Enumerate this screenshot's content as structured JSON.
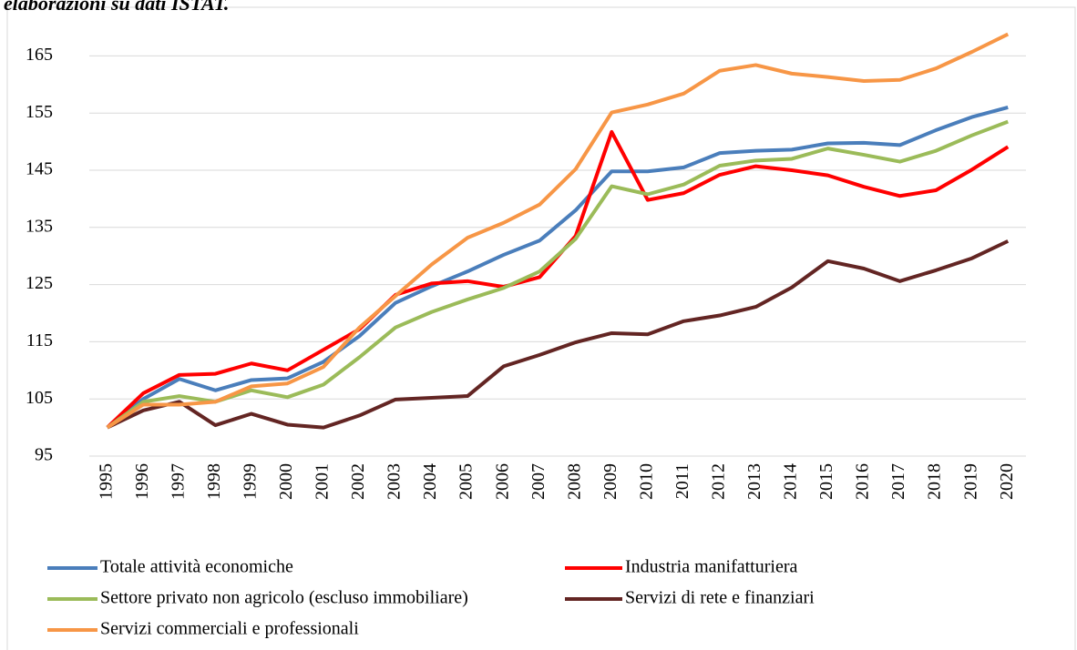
{
  "chart_data": {
    "type": "line",
    "subtitle": "elaborazioni su dati ISTAT.",
    "categories": [
      "1995",
      "1996",
      "1997",
      "1998",
      "1999",
      "2000",
      "2001",
      "2002",
      "2003",
      "2004",
      "2005",
      "2006",
      "2007",
      "2008",
      "2009",
      "2010",
      "2011",
      "2012",
      "2013",
      "2014",
      "2015",
      "2016",
      "2017",
      "2018",
      "2019",
      "2020"
    ],
    "series": [
      {
        "name": "Totale attività economiche",
        "color": "#4a7ebb",
        "values": [
          100,
          105,
          108.5,
          106.5,
          108.3,
          108.6,
          111.5,
          116,
          121.8,
          124.7,
          127.3,
          130.2,
          132.7,
          138,
          144.8,
          144.8,
          145.5,
          148,
          148.4,
          148.6,
          149.7,
          149.8,
          149.4,
          152,
          154.3,
          156
        ]
      },
      {
        "name": "Industria manifatturiera",
        "color": "#ff0000",
        "values": [
          100,
          106,
          109.2,
          109.4,
          111.2,
          110,
          113.6,
          117.2,
          123.2,
          125.2,
          125.6,
          124.6,
          126.3,
          133.5,
          151.7,
          139.8,
          141,
          144.2,
          145.7,
          145,
          144.1,
          142.1,
          140.5,
          141.5,
          145.1,
          149.1
        ]
      },
      {
        "name": "Settore privato non agricolo (escluso immobiliare)",
        "color": "#9bbb59",
        "values": [
          100,
          104.5,
          105.5,
          104.5,
          106.5,
          105.3,
          107.5,
          112.3,
          117.5,
          120.2,
          122.4,
          124.4,
          127.3,
          133,
          142.2,
          140.8,
          142.5,
          145.8,
          146.7,
          147,
          148.8,
          147.7,
          146.5,
          148.4,
          151.1,
          153.5
        ]
      },
      {
        "name": "Servizi di rete e finanziari",
        "color": "#632523",
        "values": [
          100,
          103,
          104.5,
          100.4,
          102.4,
          100.5,
          100,
          102.1,
          104.9,
          105.2,
          105.5,
          110.7,
          112.7,
          114.9,
          116.5,
          116.3,
          118.6,
          119.6,
          121.1,
          124.5,
          129.1,
          127.8,
          125.6,
          127.5,
          129.6,
          132.6
        ]
      },
      {
        "name": "Servizi commerciali e professionali",
        "color": "#f79646",
        "values": [
          100,
          104,
          104,
          104.5,
          107.2,
          107.7,
          110.6,
          117.5,
          123,
          128.5,
          133.2,
          135.8,
          139,
          145.2,
          155.1,
          156.5,
          158.4,
          162.4,
          163.4,
          161.9,
          161.3,
          160.6,
          160.8,
          162.8,
          165.7,
          168.8
        ]
      }
    ],
    "ylim": [
      95,
      170
    ],
    "yticks": [
      95,
      105,
      115,
      125,
      135,
      145,
      155,
      165
    ],
    "grid": true,
    "legend": "bottom"
  }
}
